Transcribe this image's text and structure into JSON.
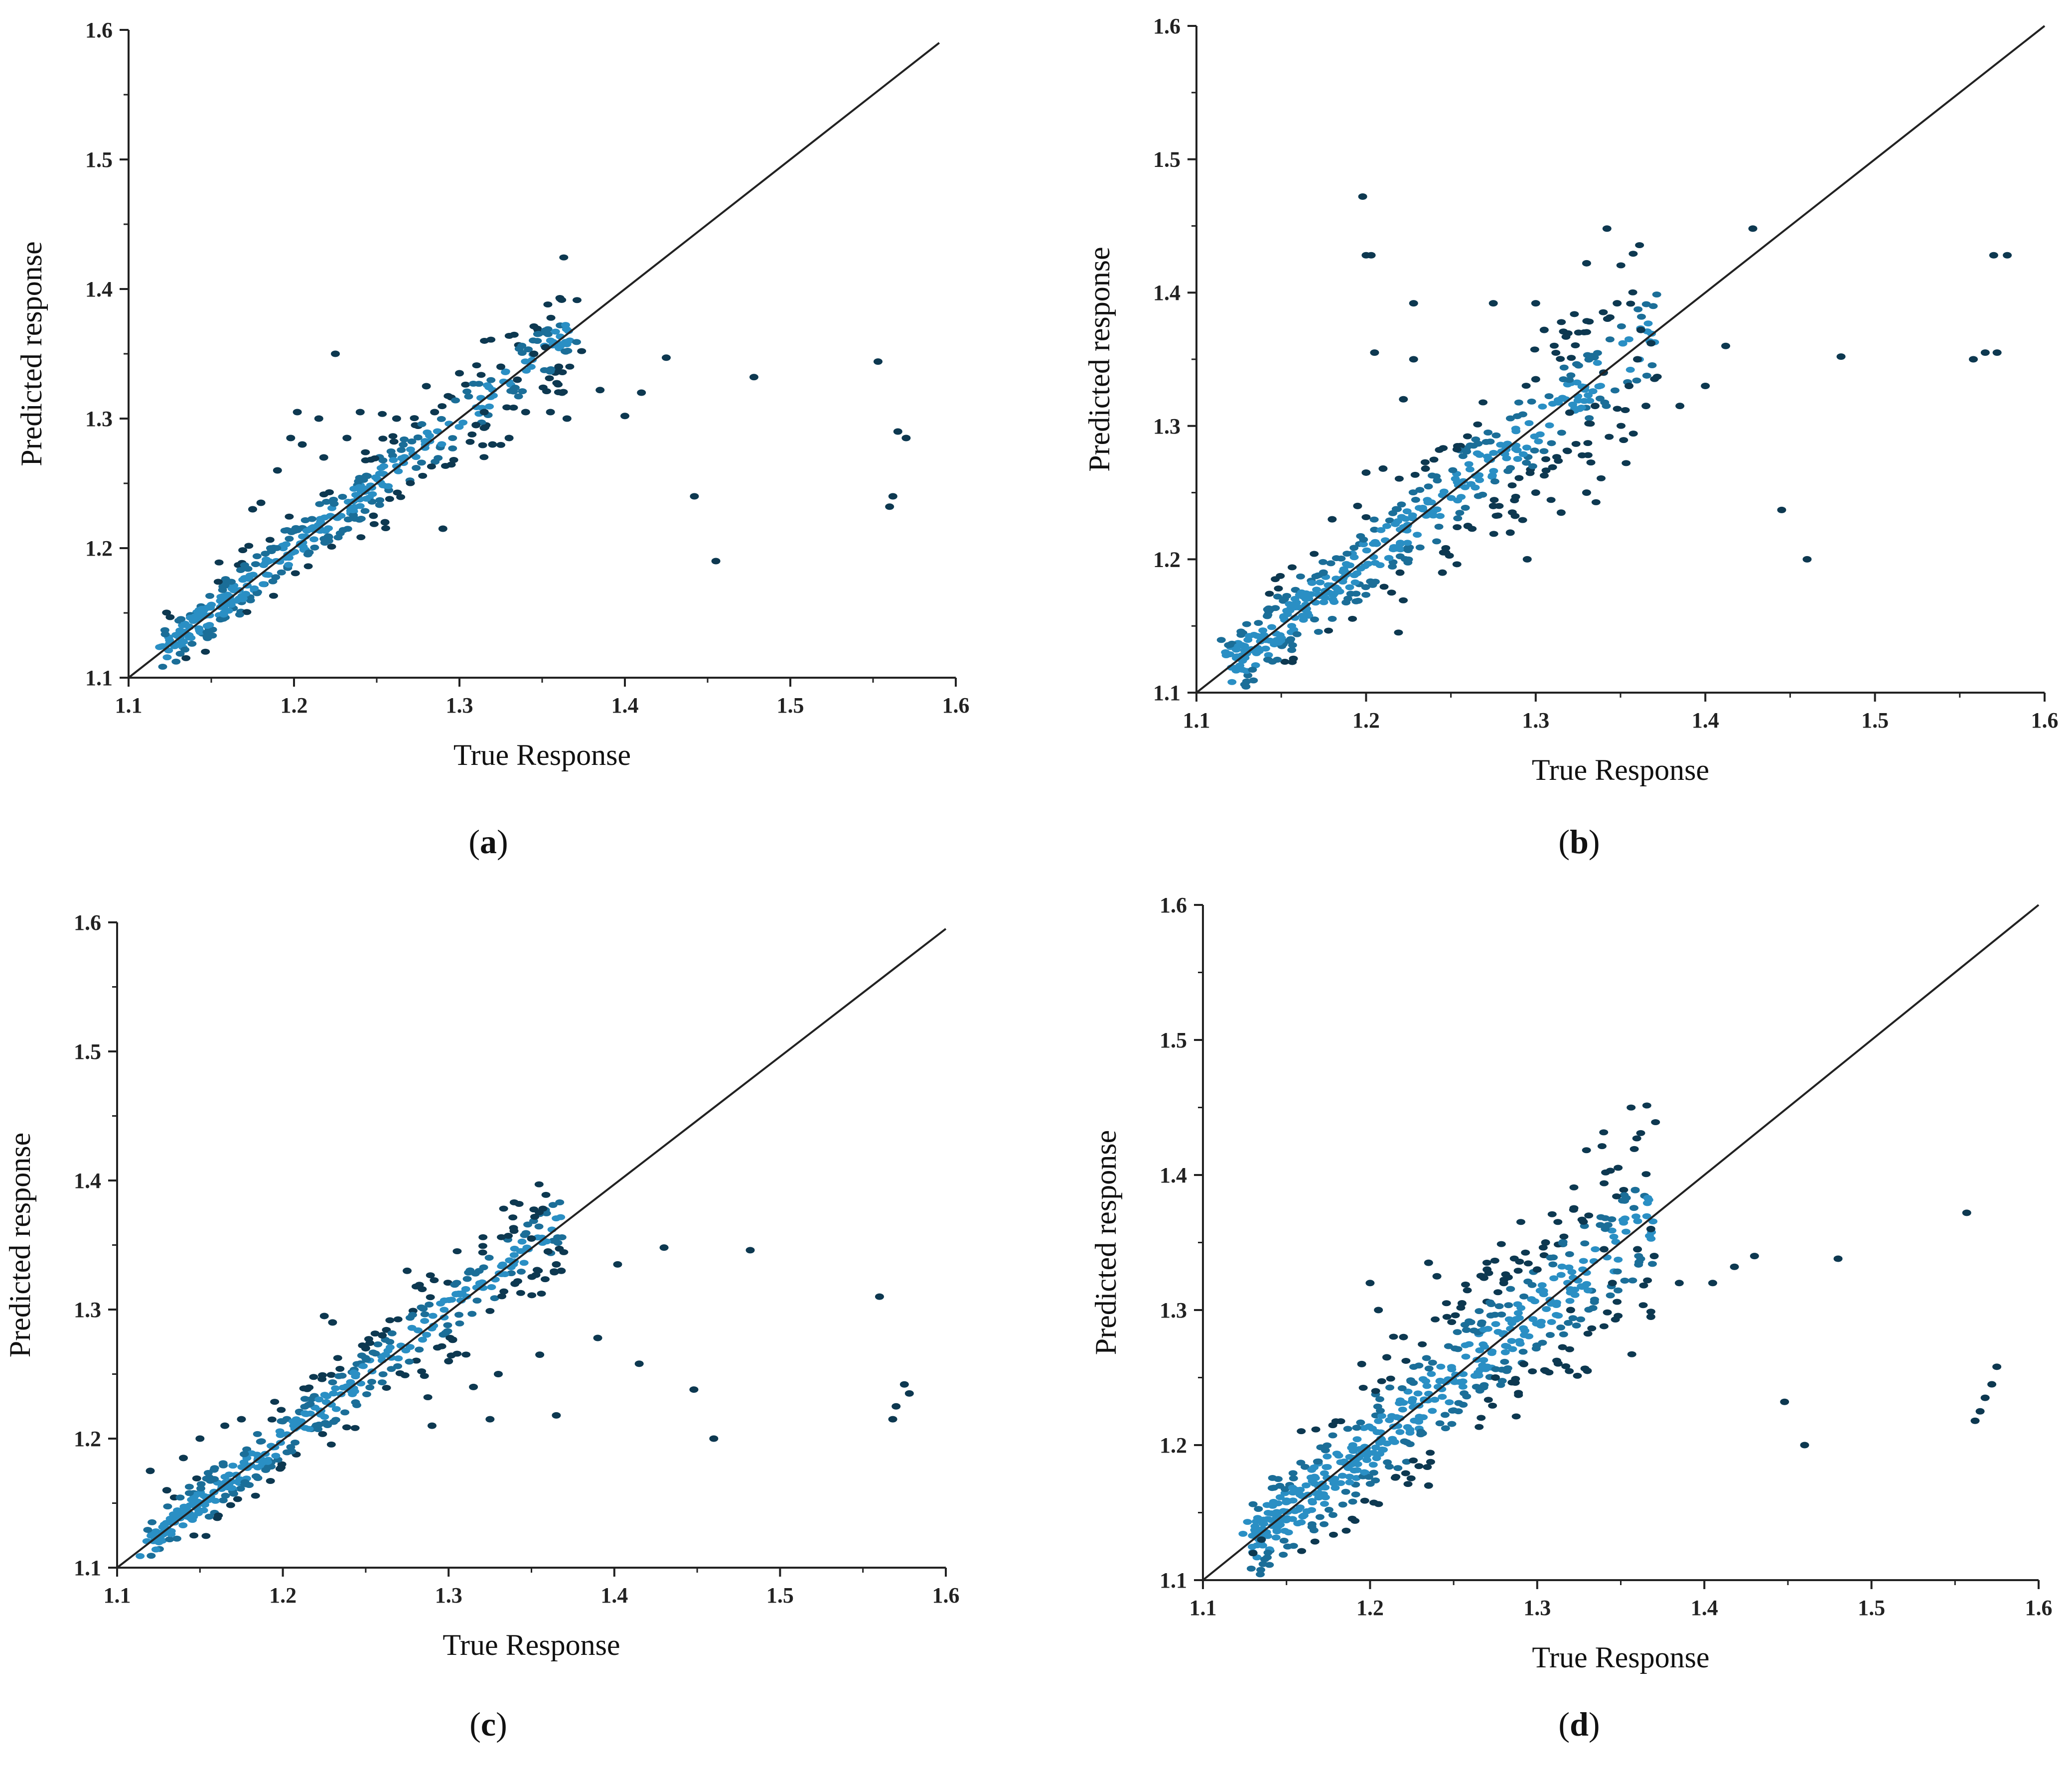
{
  "colors": {
    "dense": "#2a8fc4",
    "mid": "#1b6e98",
    "sparse": "#0d3850",
    "line": "#222222",
    "axis": "#222222"
  },
  "chart_data": [
    {
      "type": "scatter",
      "label": "a",
      "caption": "(a)",
      "xlabel": "True Response",
      "ylabel": "Predicted response",
      "xlim": [
        1.1,
        1.6
      ],
      "ylim": [
        1.1,
        1.6
      ],
      "xticks": [
        "1.1",
        "1.2",
        "1.3",
        "1.4",
        "1.5",
        "1.6"
      ],
      "yticks": [
        "1.1",
        "1.2",
        "1.3",
        "1.4",
        "1.5",
        "1.6"
      ],
      "reference_line": [
        [
          1.1,
          1.1
        ],
        [
          1.59,
          1.59
        ]
      ],
      "cluster": {
        "x_range": [
          1.12,
          1.37
        ],
        "spread": 0.012,
        "count": 480
      },
      "points": [
        [
          1.225,
          1.35
        ],
        [
          1.202,
          1.305
        ],
        [
          1.215,
          1.3
        ],
        [
          1.205,
          1.28
        ],
        [
          1.198,
          1.285
        ],
        [
          1.232,
          1.285
        ],
        [
          1.218,
          1.27
        ],
        [
          1.24,
          1.305
        ],
        [
          1.262,
          1.3
        ],
        [
          1.28,
          1.325
        ],
        [
          1.285,
          1.305
        ],
        [
          1.3,
          1.335
        ],
        [
          1.315,
          1.305
        ],
        [
          1.325,
          1.34
        ],
        [
          1.335,
          1.33
        ],
        [
          1.345,
          1.35
        ],
        [
          1.352,
          1.355
        ],
        [
          1.36,
          1.34
        ],
        [
          1.362,
          1.32
        ],
        [
          1.365,
          1.3
        ],
        [
          1.33,
          1.285
        ],
        [
          1.32,
          1.28
        ],
        [
          1.31,
          1.295
        ],
        [
          1.29,
          1.215
        ],
        [
          1.355,
          1.305
        ],
        [
          1.34,
          1.305
        ],
        [
          1.385,
          1.322
        ],
        [
          1.4,
          1.302
        ],
        [
          1.41,
          1.32
        ],
        [
          1.425,
          1.347
        ],
        [
          1.442,
          1.24
        ],
        [
          1.455,
          1.19
        ],
        [
          1.478,
          1.332
        ],
        [
          1.553,
          1.344
        ],
        [
          1.565,
          1.29
        ],
        [
          1.57,
          1.285
        ],
        [
          1.562,
          1.24
        ],
        [
          1.56,
          1.232
        ],
        [
          1.18,
          1.235
        ],
        [
          1.175,
          1.23
        ],
        [
          1.19,
          1.26
        ],
        [
          1.255,
          1.22
        ],
        [
          1.248,
          1.225
        ]
      ]
    },
    {
      "type": "scatter",
      "label": "b",
      "caption": "(b)",
      "xlabel": "True Response",
      "ylabel": "Predicted response",
      "xlim": [
        1.1,
        1.6
      ],
      "ylim": [
        1.1,
        1.6
      ],
      "xticks": [
        "1.1",
        "1.2",
        "1.3",
        "1.4",
        "1.5",
        "1.6"
      ],
      "yticks": [
        "1.1",
        "1.2",
        "1.3",
        "1.4",
        "1.5",
        "1.6"
      ],
      "reference_line": [
        [
          1.1,
          1.1
        ],
        [
          1.6,
          1.6
        ]
      ],
      "cluster": {
        "x_range": [
          1.12,
          1.37
        ],
        "spread": 0.018,
        "count": 520
      },
      "points": [
        [
          1.198,
          1.472
        ],
        [
          1.2,
          1.428
        ],
        [
          1.203,
          1.428
        ],
        [
          1.205,
          1.355
        ],
        [
          1.228,
          1.392
        ],
        [
          1.228,
          1.35
        ],
        [
          1.222,
          1.32
        ],
        [
          1.275,
          1.392
        ],
        [
          1.3,
          1.392
        ],
        [
          1.305,
          1.372
        ],
        [
          1.33,
          1.422
        ],
        [
          1.342,
          1.448
        ],
        [
          1.428,
          1.448
        ],
        [
          1.348,
          1.392
        ],
        [
          1.362,
          1.372
        ],
        [
          1.36,
          1.35
        ],
        [
          1.368,
          1.362
        ],
        [
          1.34,
          1.34
        ],
        [
          1.355,
          1.33
        ],
        [
          1.365,
          1.315
        ],
        [
          1.335,
          1.315
        ],
        [
          1.32,
          1.31
        ],
        [
          1.3,
          1.335
        ],
        [
          1.385,
          1.315
        ],
        [
          1.4,
          1.33
        ],
        [
          1.412,
          1.36
        ],
        [
          1.48,
          1.352
        ],
        [
          1.558,
          1.35
        ],
        [
          1.565,
          1.355
        ],
        [
          1.572,
          1.355
        ],
        [
          1.57,
          1.428
        ],
        [
          1.578,
          1.428
        ],
        [
          1.445,
          1.237
        ],
        [
          1.46,
          1.2
        ],
        [
          1.3,
          1.25
        ],
        [
          1.315,
          1.235
        ],
        [
          1.33,
          1.25
        ],
        [
          1.295,
          1.2
        ],
        [
          1.275,
          1.24
        ],
        [
          1.285,
          1.22
        ],
        [
          1.2,
          1.265
        ],
        [
          1.21,
          1.268
        ],
        [
          1.195,
          1.24
        ],
        [
          1.18,
          1.23
        ],
        [
          1.235,
          1.268
        ],
        [
          1.245,
          1.19
        ],
        [
          1.22,
          1.19
        ],
        [
          1.26,
          1.225
        ]
      ]
    },
    {
      "type": "scatter",
      "label": "c",
      "caption": "(c)",
      "xlabel": "True Response",
      "ylabel": "Predicted response",
      "xlim": [
        1.1,
        1.6
      ],
      "ylim": [
        1.1,
        1.6
      ],
      "xticks": [
        "1.1",
        "1.2",
        "1.3",
        "1.4",
        "1.5",
        "1.6"
      ],
      "yticks": [
        "1.1",
        "1.2",
        "1.3",
        "1.4",
        "1.5",
        "1.6"
      ],
      "reference_line": [
        [
          1.1,
          1.1
        ],
        [
          1.6,
          1.595
        ]
      ],
      "cluster": {
        "x_range": [
          1.12,
          1.37
        ],
        "spread": 0.012,
        "count": 460
      },
      "points": [
        [
          1.12,
          1.175
        ],
        [
          1.225,
          1.295
        ],
        [
          1.23,
          1.29
        ],
        [
          1.275,
          1.33
        ],
        [
          1.35,
          1.355
        ],
        [
          1.36,
          1.345
        ],
        [
          1.365,
          1.335
        ],
        [
          1.368,
          1.33
        ],
        [
          1.355,
          1.265
        ],
        [
          1.365,
          1.218
        ],
        [
          1.33,
          1.25
        ],
        [
          1.325,
          1.215
        ],
        [
          1.29,
          1.21
        ],
        [
          1.3,
          1.26
        ],
        [
          1.315,
          1.24
        ],
        [
          1.34,
          1.32
        ],
        [
          1.39,
          1.278
        ],
        [
          1.402,
          1.335
        ],
        [
          1.415,
          1.258
        ],
        [
          1.43,
          1.348
        ],
        [
          1.448,
          1.238
        ],
        [
          1.46,
          1.2
        ],
        [
          1.482,
          1.346
        ],
        [
          1.56,
          1.31
        ],
        [
          1.575,
          1.242
        ],
        [
          1.578,
          1.235
        ],
        [
          1.57,
          1.225
        ],
        [
          1.568,
          1.215
        ],
        [
          1.15,
          1.2
        ],
        [
          1.165,
          1.21
        ],
        [
          1.175,
          1.215
        ],
        [
          1.14,
          1.185
        ],
        [
          1.13,
          1.16
        ],
        [
          1.25,
          1.27
        ],
        [
          1.26,
          1.28
        ]
      ]
    },
    {
      "type": "scatter",
      "label": "d",
      "caption": "(d)",
      "xlabel": "True Response",
      "ylabel": "Predicted response",
      "xlim": [
        1.1,
        1.6
      ],
      "ylim": [
        1.1,
        1.6
      ],
      "xticks": [
        "1.1",
        "1.2",
        "1.3",
        "1.4",
        "1.5",
        "1.6"
      ],
      "yticks": [
        "1.1",
        "1.2",
        "1.3",
        "1.4",
        "1.5",
        "1.6"
      ],
      "reference_line": [
        [
          1.1,
          1.1
        ],
        [
          1.6,
          1.6
        ]
      ],
      "cluster": {
        "x_range": [
          1.13,
          1.37
        ],
        "spread": 0.022,
        "count": 640
      },
      "points": [
        [
          1.13,
          1.12
        ],
        [
          1.135,
          1.13
        ],
        [
          1.2,
          1.32
        ],
        [
          1.205,
          1.3
        ],
        [
          1.235,
          1.335
        ],
        [
          1.24,
          1.325
        ],
        [
          1.27,
          1.33
        ],
        [
          1.28,
          1.32
        ],
        [
          1.3,
          1.33
        ],
        [
          1.305,
          1.35
        ],
        [
          1.34,
          1.345
        ],
        [
          1.36,
          1.345
        ],
        [
          1.368,
          1.36
        ],
        [
          1.37,
          1.34
        ],
        [
          1.368,
          1.295
        ],
        [
          1.345,
          1.32
        ],
        [
          1.32,
          1.3
        ],
        [
          1.305,
          1.255
        ],
        [
          1.292,
          1.26
        ],
        [
          1.33,
          1.255
        ],
        [
          1.275,
          1.25
        ],
        [
          1.235,
          1.17
        ],
        [
          1.385,
          1.32
        ],
        [
          1.405,
          1.32
        ],
        [
          1.418,
          1.332
        ],
        [
          1.43,
          1.34
        ],
        [
          1.48,
          1.338
        ],
        [
          1.557,
          1.372
        ],
        [
          1.575,
          1.258
        ],
        [
          1.572,
          1.245
        ],
        [
          1.568,
          1.235
        ],
        [
          1.565,
          1.225
        ],
        [
          1.562,
          1.218
        ],
        [
          1.448,
          1.232
        ],
        [
          1.46,
          1.2
        ],
        [
          1.195,
          1.26
        ],
        [
          1.21,
          1.265
        ],
        [
          1.22,
          1.28
        ],
        [
          1.255,
          1.305
        ]
      ]
    }
  ]
}
